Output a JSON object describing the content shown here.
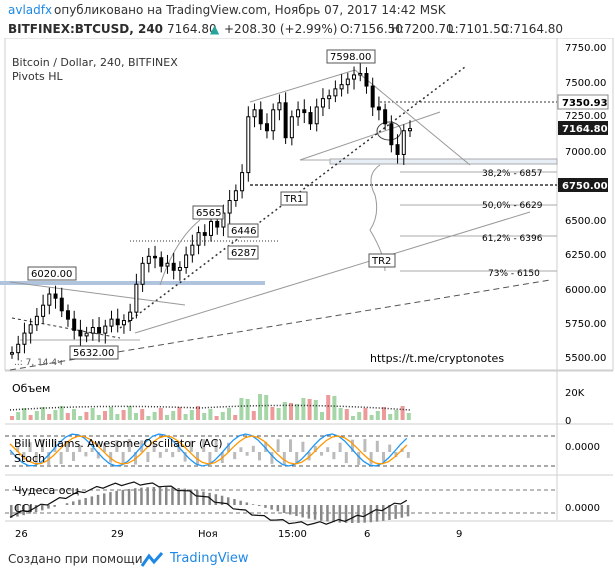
{
  "header": {
    "author": "avladfx",
    "published": "опубликовано на TradingView.com, Ноябрь 07, 2017 14:42 MSK"
  },
  "symbol_bar": {
    "symbol": "BITFINEX:BTCUSD, 240",
    "last": "7164.80",
    "change": "+208.30 (+2.99%)",
    "open": "O:7156.50",
    "high": "H:7200.70",
    "low": "L:7101.50",
    "close": "C:7164.80",
    "change_color": "#26a69a"
  },
  "chart_title": "Bitcoin / Dollar, 240, BITFINEX",
  "indicator_name": "Pivots HL",
  "annotations": {
    "high_label": "7598.00",
    "label_6020": "6020.00",
    "label_5632": "5632.00",
    "label_6565": "6565",
    "label_6446": "6446",
    "label_6287": "6287",
    "label_tr1": "TR1",
    "label_tr2": "TR2",
    "fib_382": "38,2% - 6857",
    "fib_50": "50,0% - 6629",
    "fib_612": "61,2% - 6396",
    "fib_73": "73% - 6150",
    "link": "https://t.me/cryptonotes",
    "corner_note": "..: 7, 14 4ч"
  },
  "price_axis": {
    "ticks": [
      "7750.00",
      "7500.00",
      "7250.00",
      "7000.00",
      "6750.00",
      "6500.00",
      "6250.00",
      "6000.00",
      "5750.00",
      "5500.00"
    ],
    "badge_resistance": "7350.93",
    "badge_current": "7164.80",
    "badge_support": "6750.00",
    "tick_7250": "7250.00"
  },
  "panes": {
    "volume": {
      "label": "Объем",
      "tick_20k": "20K",
      "tick_0": "0"
    },
    "oscillator": {
      "label_ao": "Bill Williams. Awesome Oscillator (AC)",
      "label_stoch": "Stoch",
      "tick": "0.0000"
    },
    "cci": {
      "label_chudesa": "Чудеса осц",
      "label_cci": "CCI",
      "tick": "0.0000"
    }
  },
  "time_axis": {
    "ticks": [
      "26",
      "29",
      "Ноя",
      "15:00",
      "6",
      "9"
    ]
  },
  "footer": {
    "credit": "Создано при помощи",
    "brand": "TradingView"
  },
  "colors": {
    "up_candle": "#000000",
    "ao_blue": "#2196f3",
    "stoch_orange": "#ff9800",
    "volume_green": "#a5d6a7",
    "volume_red": "#ef9a9a",
    "badge_dark": "#1a1a1a"
  },
  "chart_data": {
    "type": "line",
    "title": "Bitcoin / Dollar, 240, BITFINEX",
    "x_labels": [
      "26",
      "29",
      "Ноя",
      "15:00",
      "6",
      "9"
    ],
    "series": [
      {
        "name": "BTCUSD",
        "values": [
          5560,
          5620,
          5700,
          5760,
          5820,
          5900,
          5980,
          5950,
          5860,
          5800,
          5720,
          5680,
          5700,
          5740,
          5700,
          5750,
          5800,
          5760,
          5790,
          5850,
          6050,
          6200,
          6250,
          6240,
          6180,
          6200,
          6150,
          6170,
          6260,
          6330,
          6420,
          6400,
          6500,
          6460,
          6560,
          6650,
          6720,
          6850,
          7250,
          7300,
          7200,
          7150,
          7300,
          7350,
          7100,
          7250,
          7300,
          7280,
          7200,
          7320,
          7380,
          7400,
          7450,
          7480,
          7520,
          7550,
          7560,
          7470,
          7320,
          7300,
          7200,
          7050,
          6980,
          7150,
          7165
        ]
      }
    ],
    "ylim": [
      5450,
      7800
    ],
    "levels": [
      7598,
      7350.93,
      7164.8,
      6857,
      6750,
      6629,
      6396,
      6150,
      6020,
      5632
    ],
    "grid": false
  }
}
